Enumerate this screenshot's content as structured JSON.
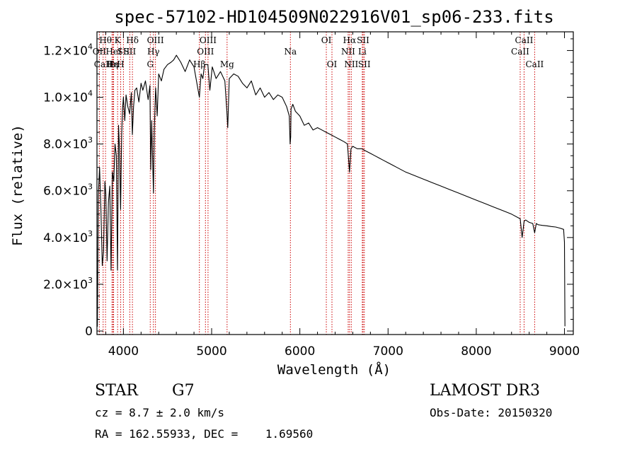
{
  "chart_data": {
    "type": "line",
    "title": "spec-57102-HD104509N022916V01_sp06-233.fits",
    "xlabel": "Wavelength (Å)",
    "ylabel": "Flux (relative)",
    "xlim": [
      3700,
      9100
    ],
    "ylim": [
      -150,
      12800
    ],
    "x_ticks": [
      4000,
      5000,
      6000,
      7000,
      8000,
      9000
    ],
    "x_tick_labels": [
      "4000",
      "5000",
      "6000",
      "7000",
      "8000",
      "9000"
    ],
    "y_ticks": [
      0,
      2000,
      4000,
      6000,
      8000,
      10000,
      12000
    ],
    "y_tick_labels": [
      {
        "mant": "0",
        "exp": ""
      },
      {
        "mant": "2.0×10",
        "exp": "3"
      },
      {
        "mant": "4.0×10",
        "exp": "3"
      },
      {
        "mant": "6.0×10",
        "exp": "3"
      },
      {
        "mant": "8.0×10",
        "exp": "3"
      },
      {
        "mant": "1.0×10",
        "exp": "4"
      },
      {
        "mant": "1.2×10",
        "exp": "4"
      }
    ],
    "series": [
      {
        "name": "flux",
        "x": [
          3700,
          3705,
          3715,
          3730,
          3745,
          3760,
          3775,
          3790,
          3800,
          3815,
          3830,
          3845,
          3860,
          3875,
          3890,
          3905,
          3920,
          3933,
          3945,
          3955,
          3968,
          3980,
          3990,
          4000,
          4015,
          4030,
          4050,
          4070,
          4090,
          4101,
          4115,
          4130,
          4150,
          4175,
          4200,
          4220,
          4250,
          4280,
          4300,
          4310,
          4320,
          4340,
          4350,
          4365,
          4383,
          4400,
          4430,
          4460,
          4500,
          4540,
          4570,
          4600,
          4650,
          4700,
          4750,
          4800,
          4861,
          4880,
          4900,
          4920,
          4957,
          4980,
          5007,
          5050,
          5100,
          5150,
          5172,
          5183,
          5200,
          5250,
          5300,
          5350,
          5400,
          5450,
          5500,
          5550,
          5600,
          5650,
          5700,
          5750,
          5800,
          5850,
          5880,
          5890,
          5896,
          5900,
          5920,
          5950,
          6000,
          6050,
          6100,
          6150,
          6200,
          6250,
          6300,
          6350,
          6400,
          6450,
          6500,
          6540,
          6563,
          6580,
          6600,
          6650,
          6700,
          6750,
          6800,
          6850,
          6900,
          6950,
          7000,
          7050,
          7100,
          7200,
          7300,
          7400,
          7500,
          7600,
          7700,
          7800,
          7900,
          8000,
          8100,
          8200,
          8300,
          8400,
          8498,
          8520,
          8542,
          8560,
          8600,
          8640,
          8662,
          8680,
          8700,
          8750,
          8800,
          8850,
          8900,
          8950,
          8990,
          9000,
          9005
        ],
        "values": [
          2600,
          200,
          5800,
          7000,
          5200,
          2800,
          3400,
          6400,
          5900,
          3000,
          5500,
          6200,
          2600,
          6800,
          6400,
          8000,
          7500,
          2600,
          8800,
          7800,
          5200,
          8400,
          9500,
          10000,
          9000,
          10100,
          9600,
          9300,
          10200,
          8400,
          9600,
          10300,
          10400,
          9800,
          10600,
          10300,
          10700,
          9900,
          10500,
          6900,
          9000,
          5900,
          8600,
          10400,
          9200,
          11000,
          10700,
          11200,
          11400,
          11500,
          11600,
          11800,
          11500,
          11100,
          11600,
          11300,
          10000,
          11000,
          10800,
          11400,
          11400,
          10300,
          11300,
          10800,
          11100,
          10700,
          9400,
          8700,
          10800,
          11000,
          10900,
          10600,
          10400,
          10700,
          10100,
          10400,
          10000,
          10200,
          9900,
          10100,
          10000,
          9600,
          9200,
          8000,
          8300,
          9500,
          9700,
          9400,
          9200,
          8800,
          8900,
          8600,
          8700,
          8600,
          8500,
          8400,
          8300,
          8200,
          8100,
          8000,
          6800,
          7800,
          7900,
          7800,
          7800,
          7700,
          7600,
          7500,
          7400,
          7300,
          7200,
          7100,
          7000,
          6800,
          6650,
          6500,
          6350,
          6200,
          6050,
          5900,
          5750,
          5600,
          5450,
          5300,
          5150,
          5000,
          4800,
          4000,
          4700,
          4750,
          4650,
          4600,
          4200,
          4600,
          4550,
          4520,
          4500,
          4470,
          4450,
          4400,
          4350,
          3800,
          200
        ]
      }
    ],
    "spectral_lines": [
      {
        "label": "Hθ",
        "wavelength": 3797,
        "row": 1
      },
      {
        "label": "OII",
        "wavelength": 3727,
        "row": 2
      },
      {
        "label": "CaII",
        "wavelength": 3770,
        "row": 3
      },
      {
        "label": "Hε",
        "wavelength": 3880,
        "row": 3
      },
      {
        "label": "HeI",
        "wavelength": 3889,
        "row": 2
      },
      {
        "label": "K",
        "wavelength": 3934,
        "row": 1
      },
      {
        "label": "SII",
        "wavelength": 4000,
        "row": 2
      },
      {
        "label": "Hη",
        "wavelength": 3870,
        "row": 3
      },
      {
        "label": "H",
        "wavelength": 3969,
        "row": 3
      },
      {
        "label": "Hδ",
        "wavelength": 4102,
        "row": 1
      },
      {
        "label": "SII",
        "wavelength": 4072,
        "row": 2
      },
      {
        "label": "OIII",
        "wavelength": 4363,
        "row": 1
      },
      {
        "label": "Hγ",
        "wavelength": 4340,
        "row": 2
      },
      {
        "label": "G",
        "wavelength": 4304,
        "row": 3
      },
      {
        "label": "OIII",
        "wavelength": 4959,
        "row": 1
      },
      {
        "label": "OIII",
        "wavelength": 4930,
        "row": 2
      },
      {
        "label": "Hβ",
        "wavelength": 4861,
        "row": 3
      },
      {
        "label": "Mg",
        "wavelength": 5175,
        "row": 3
      },
      {
        "label": "Na",
        "wavelength": 5893,
        "row": 2
      },
      {
        "label": "OI",
        "wavelength": 6300,
        "row": 1
      },
      {
        "label": "OI",
        "wavelength": 6364,
        "row": 3
      },
      {
        "label": "Hα",
        "wavelength": 6563,
        "row": 1
      },
      {
        "label": "NII",
        "wavelength": 6548,
        "row": 2
      },
      {
        "label": "NII",
        "wavelength": 6583,
        "row": 3
      },
      {
        "label": "SII",
        "wavelength": 6717,
        "row": 1
      },
      {
        "label": "Li",
        "wavelength": 6708,
        "row": 2
      },
      {
        "label": "SII",
        "wavelength": 6731,
        "row": 3
      },
      {
        "label": "CaII",
        "wavelength": 8542,
        "row": 1
      },
      {
        "label": "CaII",
        "wavelength": 8498,
        "row": 2
      },
      {
        "label": "CaII",
        "wavelength": 8662,
        "row": 3
      }
    ],
    "line_marker_color": "#cc0000",
    "curve_color": "#000000"
  },
  "info": {
    "object_type": "STAR",
    "subclass": "G7",
    "survey": "LAMOST DR3",
    "cz": "cz = 8.7 ± 2.0 km/s",
    "coords": "RA = 162.55933, DEC =    1.69560",
    "obs_date": "Obs-Date: 20150320"
  }
}
